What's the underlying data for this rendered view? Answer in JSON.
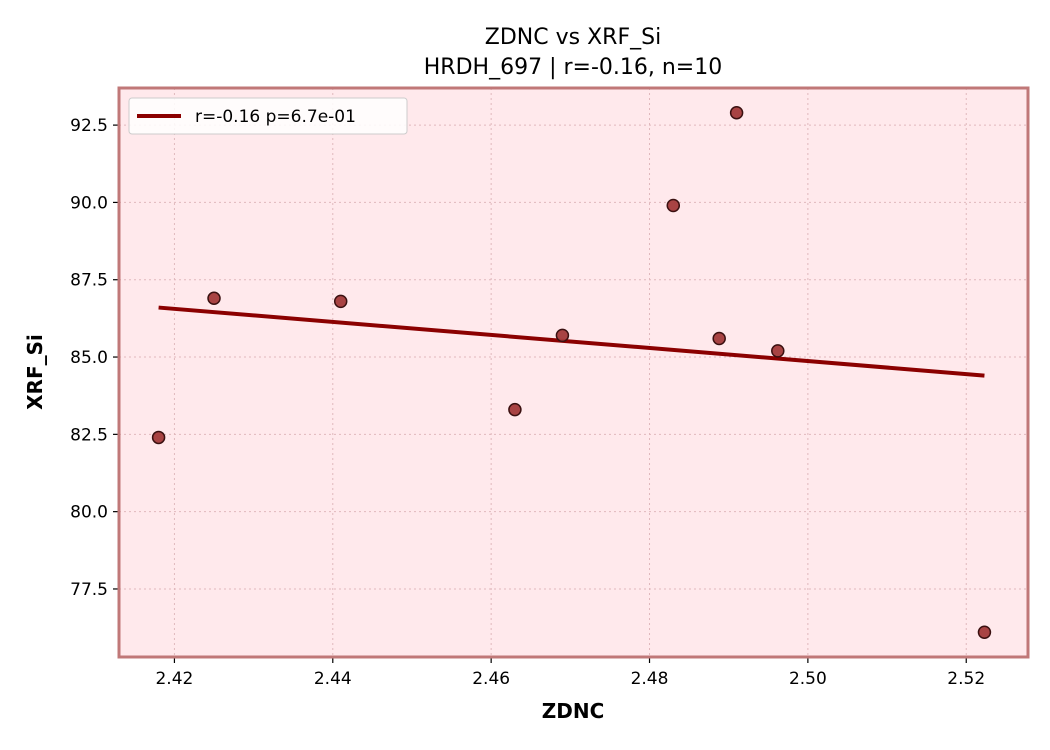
{
  "chart_data": {
    "type": "scatter",
    "title": "ZDNC vs XRF_Si",
    "subtitle": "HRDH_697 | r=-0.16, n=10",
    "xlabel": "ZDNC",
    "ylabel": "XRF_Si",
    "xlim": [
      2.413,
      2.5278
    ],
    "ylim": [
      75.3,
      93.7
    ],
    "xticks": [
      2.42,
      2.44,
      2.46,
      2.48,
      2.5,
      2.52
    ],
    "xtick_labels": [
      "2.42",
      "2.44",
      "2.46",
      "2.48",
      "2.50",
      "2.52"
    ],
    "yticks": [
      77.5,
      80.0,
      82.5,
      85.0,
      87.5,
      90.0,
      92.5
    ],
    "ytick_labels": [
      "77.5",
      "80.0",
      "82.5",
      "85.0",
      "87.5",
      "90.0",
      "92.5"
    ],
    "grid": true,
    "legend_position": "top-left",
    "series": [
      {
        "type": "scatter",
        "x": [
          2.418,
          2.425,
          2.441,
          2.463,
          2.469,
          2.483,
          2.4888,
          2.491,
          2.4962,
          2.5223
        ],
        "y": [
          82.4,
          86.9,
          86.8,
          83.3,
          85.7,
          89.9,
          85.6,
          92.9,
          85.2,
          76.1
        ]
      },
      {
        "type": "line",
        "name": "r=-0.16  p=6.7e-01",
        "x": [
          2.418,
          2.5223
        ],
        "y": [
          86.6,
          84.4
        ]
      }
    ],
    "colors": {
      "plot_background": "#ffe9ec",
      "frame": "#c07878",
      "marker_fill": "#a33a3a",
      "marker_edge": "#3a1010",
      "trend_line": "#8b0000",
      "grid": "#e0b8bc"
    }
  }
}
